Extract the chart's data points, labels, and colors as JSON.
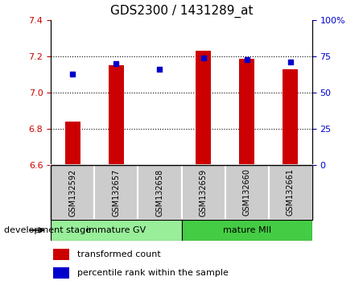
{
  "title": "GDS2300 / 1431289_at",
  "samples": [
    "GSM132592",
    "GSM132657",
    "GSM132658",
    "GSM132659",
    "GSM132660",
    "GSM132661"
  ],
  "bar_values": [
    6.84,
    7.15,
    6.608,
    7.23,
    7.185,
    7.13
  ],
  "bar_base": 6.6,
  "percentile_values": [
    63,
    70,
    66,
    74,
    73,
    71
  ],
  "ylim_left": [
    6.6,
    7.4
  ],
  "ylim_right": [
    0,
    100
  ],
  "yticks_left": [
    6.6,
    6.8,
    7.0,
    7.2,
    7.4
  ],
  "yticks_right": [
    0,
    25,
    50,
    75,
    100
  ],
  "yticklabels_right": [
    "0",
    "25",
    "50",
    "75",
    "100%"
  ],
  "bar_color": "#cc0000",
  "dot_color": "#0000cc",
  "group1_label": "immature GV",
  "group2_label": "mature MII",
  "group1_color": "#99ee99",
  "group2_color": "#44cc44",
  "sample_bg_color": "#cccccc",
  "xlabel": "development stage",
  "legend_bar_label": "transformed count",
  "legend_dot_label": "percentile rank within the sample",
  "tick_label_color_left": "#cc0000",
  "tick_label_color_right": "#0000cc",
  "dotted_line_values": [
    6.8,
    7.0,
    7.2
  ],
  "bar_width": 0.35
}
